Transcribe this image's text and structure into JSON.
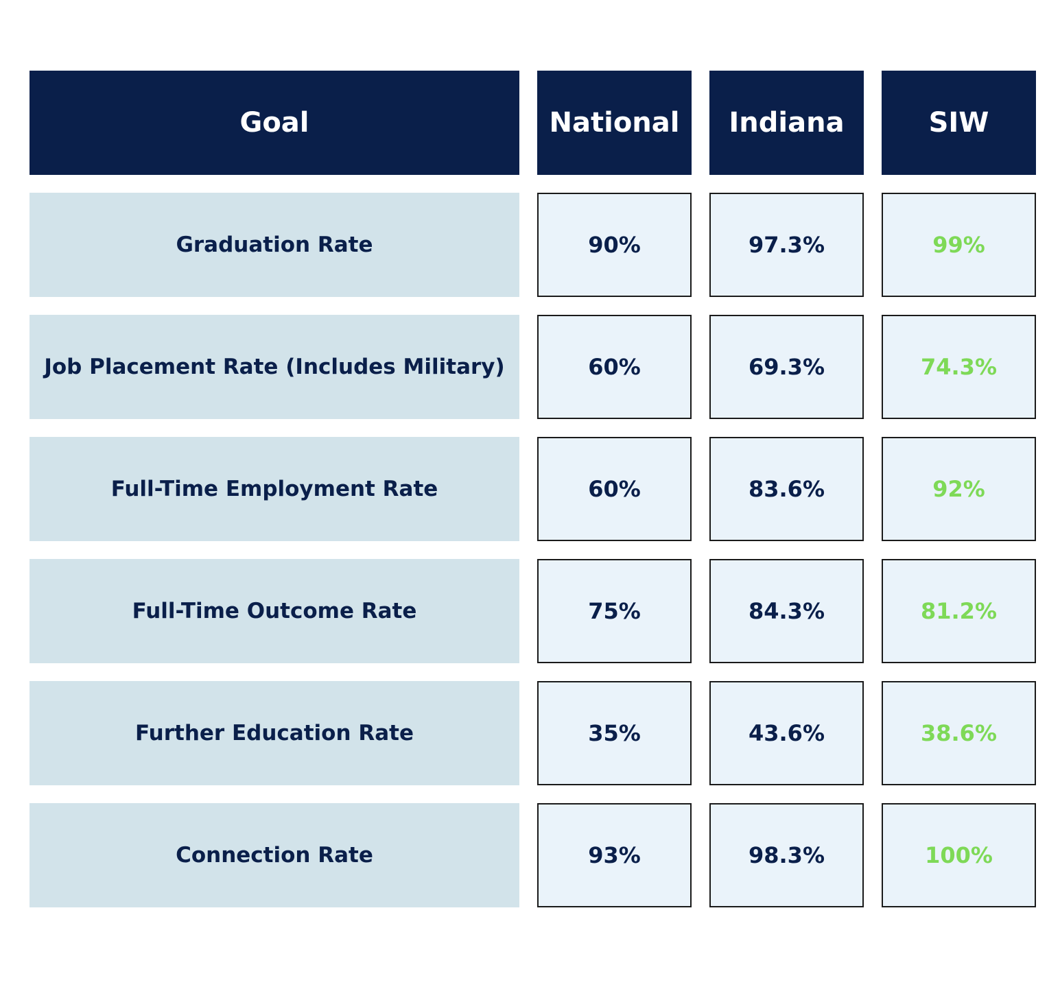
{
  "colors": {
    "header_bg": "#0a1f4a",
    "goal_bg": "#d2e3ea",
    "value_bg": "#eaf3fa",
    "siw_text": "#7ed957"
  },
  "header": {
    "goal": "Goal",
    "national": "National",
    "indiana": "Indiana",
    "siw": "SIW"
  },
  "rows": [
    {
      "goal": "Graduation Rate",
      "national": "90%",
      "indiana": "97.3%",
      "siw": "99%"
    },
    {
      "goal": "Job Placement Rate (Includes Military)",
      "national": "60%",
      "indiana": "69.3%",
      "siw": "74.3%"
    },
    {
      "goal": "Full-Time Employment Rate",
      "national": "60%",
      "indiana": "83.6%",
      "siw": "92%"
    },
    {
      "goal": "Full-Time Outcome Rate",
      "national": "75%",
      "indiana": "84.3%",
      "siw": "81.2%"
    },
    {
      "goal": "Further Education Rate",
      "national": "35%",
      "indiana": "43.6%",
      "siw": "38.6%"
    },
    {
      "goal": "Connection Rate",
      "national": "93%",
      "indiana": "98.3%",
      "siw": "100%"
    }
  ]
}
